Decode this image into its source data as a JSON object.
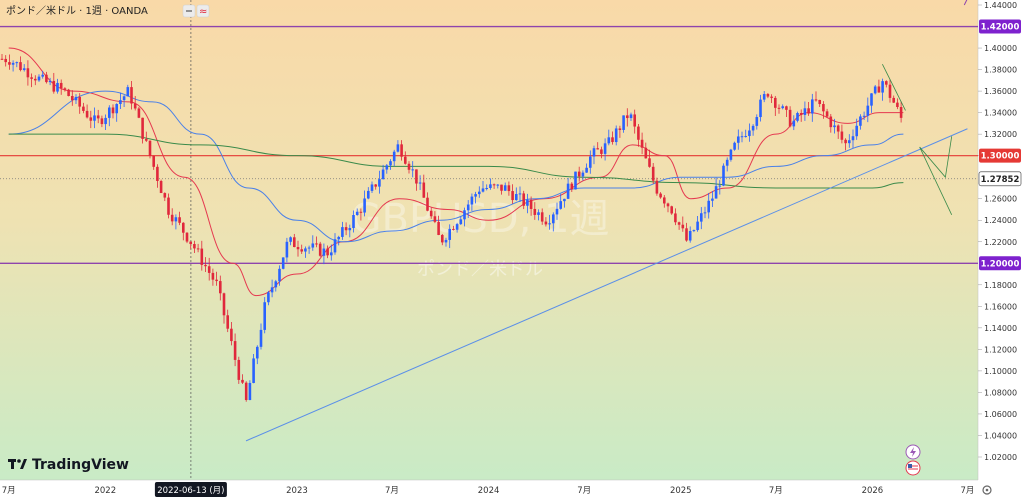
{
  "header": {
    "title": "ポンド／米ドル · 1週 · OANDA"
  },
  "watermark": {
    "symbol": "GBPUSD, 1週",
    "name": "ポンド／米ドル"
  },
  "logo": {
    "text": "TradingView"
  },
  "crosshair": {
    "date_label": "2022-06-13 (月)",
    "date": "2022-06-13"
  },
  "price_axis": {
    "ticks": [
      "1.44000",
      "1.40000",
      "1.38000",
      "1.36000",
      "1.34000",
      "1.32000",
      "1.30000",
      "1.26000",
      "1.24000",
      "1.22000",
      "1.18000",
      "1.16000",
      "1.14000",
      "1.12000",
      "1.10000",
      "1.08000",
      "1.06000",
      "1.04000",
      "1.02000"
    ]
  },
  "price_labels": [
    {
      "text": "1.42000",
      "value": 1.42,
      "bg": "#7e22ce",
      "fg": "#ffffff"
    },
    {
      "text": "1.30000",
      "value": 1.3,
      "bg": "#e53935",
      "fg": "#ffffff"
    },
    {
      "text": "1.27852",
      "value": 1.27852,
      "bg": "#ffffff",
      "fg": "#222222"
    },
    {
      "text": "1.20000",
      "value": 1.2,
      "bg": "#7e22ce",
      "fg": "#ffffff"
    }
  ],
  "time_axis": {
    "labels": [
      {
        "text": "7月",
        "date": "2021-07-01"
      },
      {
        "text": "2022",
        "date": "2022-01-01"
      },
      {
        "text": "2023",
        "date": "2023-01-01"
      },
      {
        "text": "7月",
        "date": "2023-07-01"
      },
      {
        "text": "2024",
        "date": "2024-01-01"
      },
      {
        "text": "7月",
        "date": "2024-07-01"
      },
      {
        "text": "2025",
        "date": "2025-01-01"
      },
      {
        "text": "7月",
        "date": "2025-07-01"
      },
      {
        "text": "2026",
        "date": "2026-01-01"
      },
      {
        "text": "7月",
        "date": "2026-07-01"
      }
    ]
  },
  "colors": {
    "up": "#2962ff",
    "down": "#e0283c",
    "ma_short": "#e53950",
    "ma_mid": "#4a80e8",
    "ma_long": "#3a8a4a",
    "hline_purple": "#8e44ad",
    "hline_red": "#e53935",
    "trend": "#5b8fe8",
    "bg_top": "#f9d9a8",
    "bg_bottom": "#c9ebc6"
  },
  "chart_data": {
    "type": "line",
    "title": "ポンド／米ドル · 1週 · OANDA",
    "xlabel": "",
    "ylabel": "",
    "ylim": [
      1.0,
      1.45
    ],
    "horizontal_lines": [
      1.42,
      1.3,
      1.2
    ],
    "current_price": 1.27852,
    "series": [
      {
        "kind": "close",
        "x": [
          "2021-07-01",
          "2021-09-01",
          "2021-10-15",
          "2021-12-15",
          "2022-02-15",
          "2022-03-20",
          "2022-05-01",
          "2022-06-13",
          "2022-08-01",
          "2022-09-26",
          "2022-11-01",
          "2022-12-15",
          "2023-03-01",
          "2023-05-01",
          "2023-07-14",
          "2023-08-15",
          "2023-10-01",
          "2023-11-01",
          "2023-12-15",
          "2024-02-01",
          "2024-04-22",
          "2024-06-01",
          "2024-07-15",
          "2024-08-15",
          "2024-09-25",
          "2024-10-15",
          "2024-11-15",
          "2024-12-15",
          "2025-01-13",
          "2025-03-01",
          "2025-04-15",
          "2025-05-15",
          "2025-06-15",
          "2025-08-01",
          "2025-09-15",
          "2025-10-15",
          "2025-11-10",
          "2025-12-15",
          "2026-01-20",
          "2026-02-10",
          "2026-03-01"
        ],
        "values": [
          1.39,
          1.37,
          1.36,
          1.33,
          1.36,
          1.31,
          1.25,
          1.22,
          1.18,
          1.07,
          1.16,
          1.22,
          1.21,
          1.25,
          1.31,
          1.28,
          1.22,
          1.24,
          1.27,
          1.27,
          1.24,
          1.27,
          1.3,
          1.31,
          1.34,
          1.31,
          1.27,
          1.25,
          1.22,
          1.26,
          1.31,
          1.33,
          1.36,
          1.33,
          1.35,
          1.33,
          1.31,
          1.34,
          1.37,
          1.35,
          1.33
        ]
      },
      {
        "kind": "ma_short",
        "x": [
          "2021-07-01",
          "2021-11-01",
          "2022-02-15",
          "2022-06-01",
          "2022-09-01",
          "2022-10-15",
          "2023-01-01",
          "2023-04-01",
          "2023-07-15",
          "2023-10-15",
          "2024-01-01",
          "2024-04-15",
          "2024-08-01",
          "2024-10-01",
          "2024-12-01",
          "2025-01-20",
          "2025-04-01",
          "2025-07-01",
          "2025-09-01",
          "2025-11-15",
          "2026-01-15",
          "2026-03-01"
        ],
        "values": [
          1.4,
          1.36,
          1.35,
          1.28,
          1.2,
          1.17,
          1.19,
          1.22,
          1.26,
          1.25,
          1.24,
          1.26,
          1.28,
          1.31,
          1.3,
          1.26,
          1.27,
          1.32,
          1.34,
          1.33,
          1.34,
          1.34
        ]
      },
      {
        "kind": "ma_mid",
        "x": [
          "2021-07-01",
          "2022-01-01",
          "2022-04-01",
          "2022-07-01",
          "2022-10-01",
          "2023-01-01",
          "2023-04-01",
          "2023-07-01",
          "2023-10-01",
          "2024-01-01",
          "2024-04-01",
          "2024-07-01",
          "2024-10-01",
          "2025-01-01",
          "2025-04-01",
          "2025-07-01",
          "2025-10-01",
          "2026-01-01",
          "2026-03-01"
        ],
        "values": [
          1.32,
          1.36,
          1.35,
          1.32,
          1.27,
          1.24,
          1.22,
          1.23,
          1.24,
          1.25,
          1.26,
          1.27,
          1.27,
          1.28,
          1.28,
          1.29,
          1.3,
          1.31,
          1.32
        ]
      },
      {
        "kind": "ma_long",
        "x": [
          "2021-07-01",
          "2022-01-01",
          "2022-07-01",
          "2023-01-01",
          "2023-07-01",
          "2024-01-01",
          "2024-07-01",
          "2025-01-01",
          "2025-07-01",
          "2026-01-01",
          "2026-03-01"
        ],
        "values": [
          1.32,
          1.32,
          1.31,
          1.3,
          1.29,
          1.29,
          1.28,
          1.275,
          1.27,
          1.27,
          1.275
        ]
      },
      {
        "kind": "trendline",
        "x": [
          "2022-09-26",
          "2026-07-01"
        ],
        "values": [
          1.035,
          1.325
        ]
      }
    ]
  }
}
